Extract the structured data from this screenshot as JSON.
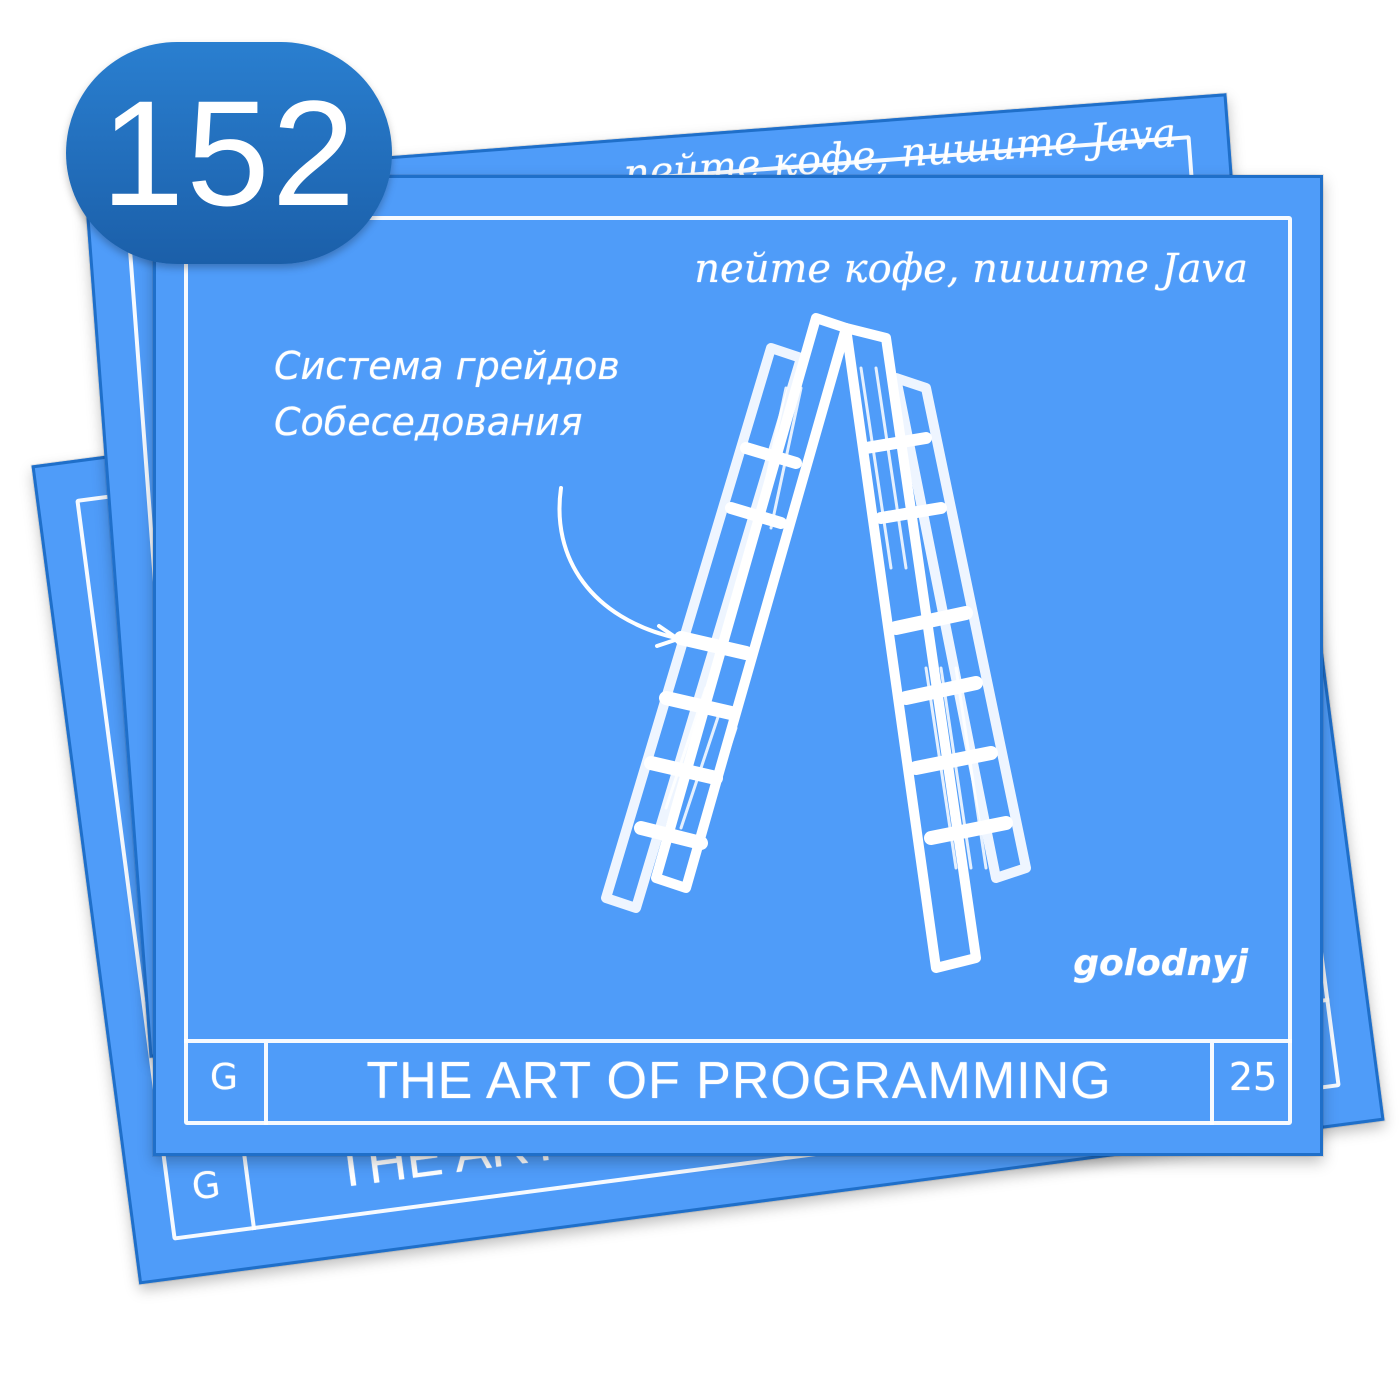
{
  "badge": {
    "number": "152"
  },
  "cards": {
    "back_top": {
      "slogan": "пейте кофе, пишите Java"
    },
    "back_bottom": {
      "footer_letter": "G",
      "footer_title": "THE ART OF PROGRAMMING"
    },
    "front": {
      "slogan": "пейте кофе, пишите Java",
      "caption_line_1": "Система грейдов",
      "caption_line_2": "Собеседования",
      "author": "golodnyj",
      "footer_letter": "G",
      "footer_title": "THE ART OF PROGRAMMING",
      "footer_page": "25"
    }
  },
  "colors": {
    "card_blue": "#4f9cf9",
    "card_border": "#1f6fc9",
    "badge_blue": "#2a7fd0",
    "chalk": "#ffffff"
  },
  "illustration": {
    "subject": "ladder-icon",
    "pointer": "arrow-icon"
  }
}
